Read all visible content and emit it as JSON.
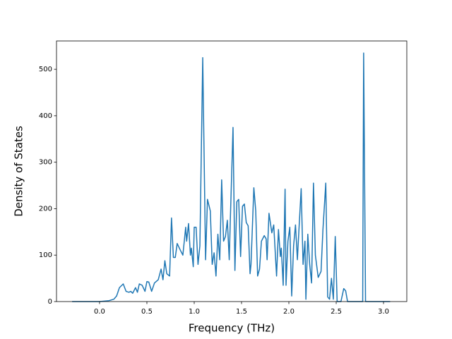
{
  "chart_data": {
    "type": "line",
    "xlabel": "Frequency (THz)",
    "ylabel": "Density of States",
    "color": "#1f77b4",
    "x": [
      -0.29,
      0.0,
      0.1,
      0.15,
      0.18,
      0.21,
      0.25,
      0.28,
      0.31,
      0.33,
      0.35,
      0.38,
      0.4,
      0.42,
      0.45,
      0.48,
      0.5,
      0.52,
      0.55,
      0.58,
      0.62,
      0.65,
      0.67,
      0.69,
      0.71,
      0.74,
      0.76,
      0.78,
      0.8,
      0.82,
      0.85,
      0.88,
      0.91,
      0.92,
      0.94,
      0.96,
      0.97,
      0.99,
      1.0,
      1.02,
      1.04,
      1.06,
      1.09,
      1.12,
      1.14,
      1.17,
      1.19,
      1.21,
      1.23,
      1.25,
      1.27,
      1.29,
      1.31,
      1.33,
      1.35,
      1.37,
      1.38,
      1.41,
      1.43,
      1.45,
      1.47,
      1.49,
      1.51,
      1.53,
      1.55,
      1.57,
      1.59,
      1.6,
      1.63,
      1.65,
      1.67,
      1.69,
      1.71,
      1.74,
      1.76,
      1.77,
      1.79,
      1.82,
      1.84,
      1.87,
      1.89,
      1.91,
      1.92,
      1.94,
      1.96,
      1.97,
      1.99,
      2.01,
      2.03,
      2.05,
      2.07,
      2.09,
      2.1,
      2.13,
      2.15,
      2.17,
      2.18,
      2.2,
      2.22,
      2.24,
      2.26,
      2.28,
      2.31,
      2.34,
      2.36,
      2.39,
      2.41,
      2.43,
      2.45,
      2.47,
      2.49,
      2.51,
      2.55,
      2.58,
      2.6,
      2.62,
      2.78,
      2.79,
      2.81,
      3.07
    ],
    "values": [
      0,
      0,
      2,
      5,
      12,
      30,
      38,
      22,
      20,
      22,
      18,
      30,
      20,
      38,
      35,
      22,
      43,
      42,
      22,
      40,
      47,
      70,
      47,
      88,
      60,
      55,
      180,
      95,
      95,
      125,
      112,
      100,
      160,
      130,
      168,
      100,
      115,
      75,
      160,
      160,
      80,
      120,
      525,
      90,
      220,
      195,
      80,
      105,
      55,
      145,
      90,
      262,
      130,
      140,
      175,
      90,
      165,
      375,
      67,
      215,
      220,
      97,
      205,
      210,
      170,
      163,
      60,
      80,
      245,
      195,
      55,
      70,
      130,
      142,
      135,
      90,
      190,
      148,
      165,
      55,
      155,
      97,
      115,
      35,
      242,
      35,
      130,
      160,
      12,
      120,
      165,
      90,
      130,
      243,
      80,
      130,
      5,
      145,
      80,
      40,
      255,
      100,
      52,
      65,
      155,
      255,
      10,
      5,
      50,
      5,
      140,
      0,
      0,
      28,
      23,
      0,
      0,
      535,
      0,
      0
    ],
    "xlim": [
      -0.455,
      3.246
    ],
    "ylim": [
      0,
      561
    ],
    "xticks": [
      {
        "value": 0,
        "label": "0.0"
      },
      0.5,
      {
        "value": 1,
        "label": "1.0"
      },
      1.5,
      {
        "value": 2,
        "label": "2.0"
      },
      2.5,
      {
        "value": 3,
        "label": "3.0"
      }
    ],
    "yticks": [
      0,
      100,
      200,
      300,
      400,
      500
    ]
  }
}
